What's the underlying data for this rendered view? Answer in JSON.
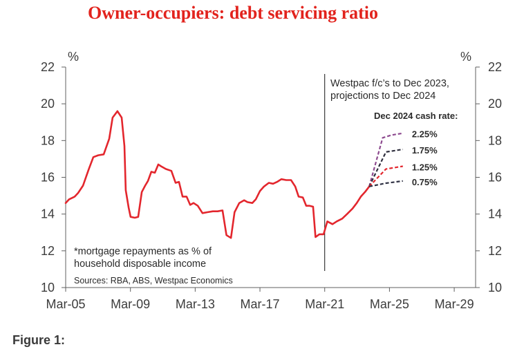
{
  "figure_label": "Figure 1:",
  "chart_data": {
    "type": "line",
    "title": "Owner-occupiers: debt servicing ratio",
    "y_unit_left": "%",
    "y_unit_right": "%",
    "ylim": [
      10,
      22
    ],
    "yticks": [
      22,
      20,
      18,
      16,
      14,
      12,
      10
    ],
    "xlim": [
      2005.17,
      2030.49
    ],
    "xticks": [
      {
        "label": "Mar-05",
        "x": 2005.17
      },
      {
        "label": "Mar-09",
        "x": 2009.17
      },
      {
        "label": "Mar-13",
        "x": 2013.17
      },
      {
        "label": "Mar-17",
        "x": 2017.17
      },
      {
        "label": "Mar-21",
        "x": 2021.17
      },
      {
        "label": "Mar-25",
        "x": 2025.17
      },
      {
        "label": "Mar-29",
        "x": 2029.17
      }
    ],
    "grid": false,
    "series": [
      {
        "color": "#e3262d",
        "dashed": false,
        "points": [
          [
            2005.17,
            14.6
          ],
          [
            2005.38,
            14.8
          ],
          [
            2005.73,
            14.95
          ],
          [
            2005.94,
            15.15
          ],
          [
            2006.24,
            15.55
          ],
          [
            2006.58,
            16.4
          ],
          [
            2006.88,
            17.1
          ],
          [
            2007.18,
            17.2
          ],
          [
            2007.52,
            17.25
          ],
          [
            2007.86,
            18.1
          ],
          [
            2008.07,
            19.25
          ],
          [
            2008.37,
            19.6
          ],
          [
            2008.63,
            19.25
          ],
          [
            2008.8,
            17.7
          ],
          [
            2008.88,
            15.3
          ],
          [
            2009.06,
            14.35
          ],
          [
            2009.18,
            13.85
          ],
          [
            2009.44,
            13.8
          ],
          [
            2009.65,
            13.85
          ],
          [
            2009.87,
            15.2
          ],
          [
            2010.08,
            15.55
          ],
          [
            2010.25,
            15.8
          ],
          [
            2010.46,
            16.3
          ],
          [
            2010.68,
            16.25
          ],
          [
            2010.89,
            16.7
          ],
          [
            2011.06,
            16.6
          ],
          [
            2011.36,
            16.45
          ],
          [
            2011.7,
            16.35
          ],
          [
            2011.96,
            15.7
          ],
          [
            2012.17,
            15.75
          ],
          [
            2012.39,
            14.95
          ],
          [
            2012.64,
            14.95
          ],
          [
            2012.86,
            14.5
          ],
          [
            2013.07,
            14.6
          ],
          [
            2013.33,
            14.45
          ],
          [
            2013.62,
            14.05
          ],
          [
            2013.92,
            14.1
          ],
          [
            2014.26,
            14.15
          ],
          [
            2014.56,
            14.15
          ],
          [
            2014.86,
            14.2
          ],
          [
            2015.1,
            12.85
          ],
          [
            2015.38,
            12.7
          ],
          [
            2015.6,
            14.1
          ],
          [
            2015.89,
            14.6
          ],
          [
            2016.19,
            14.75
          ],
          [
            2016.4,
            14.65
          ],
          [
            2016.7,
            14.6
          ],
          [
            2016.91,
            14.8
          ],
          [
            2017.17,
            15.25
          ],
          [
            2017.42,
            15.5
          ],
          [
            2017.72,
            15.7
          ],
          [
            2017.98,
            15.65
          ],
          [
            2018.23,
            15.75
          ],
          [
            2018.49,
            15.9
          ],
          [
            2018.79,
            15.85
          ],
          [
            2019.09,
            15.85
          ],
          [
            2019.35,
            15.5
          ],
          [
            2019.56,
            14.95
          ],
          [
            2019.82,
            14.9
          ],
          [
            2020.03,
            14.45
          ],
          [
            2020.24,
            14.45
          ],
          [
            2020.45,
            14.4
          ],
          [
            2020.6,
            12.75
          ],
          [
            2020.84,
            12.9
          ],
          [
            2021.1,
            12.9
          ],
          [
            2021.33,
            13.6
          ],
          [
            2021.65,
            13.45
          ],
          [
            2021.91,
            13.6
          ],
          [
            2022.25,
            13.75
          ],
          [
            2022.55,
            14.0
          ],
          [
            2022.89,
            14.3
          ],
          [
            2023.15,
            14.6
          ],
          [
            2023.4,
            14.95
          ],
          [
            2023.66,
            15.2
          ],
          [
            2023.92,
            15.5
          ]
        ]
      },
      {
        "name": "2.25%",
        "color": "#8d4a8f",
        "dashed": true,
        "points": [
          [
            2023.92,
            15.5
          ],
          [
            2024.75,
            18.15
          ],
          [
            2025.3,
            18.3
          ],
          [
            2026.0,
            18.4
          ]
        ]
      },
      {
        "name": "1.75%",
        "color": "#2e2e3d",
        "dashed": true,
        "points": [
          [
            2023.92,
            15.5
          ],
          [
            2024.95,
            17.38
          ],
          [
            2026.0,
            17.52
          ]
        ]
      },
      {
        "name": "1.25%",
        "color": "#e3262d",
        "dashed": true,
        "points": [
          [
            2023.92,
            15.5
          ],
          [
            2024.95,
            16.45
          ],
          [
            2026.0,
            16.6
          ]
        ]
      },
      {
        "name": "0.75%",
        "color": "#2e3042",
        "dashed": true,
        "points": [
          [
            2023.92,
            15.5
          ],
          [
            2024.95,
            15.68
          ],
          [
            2026.0,
            15.8
          ]
        ]
      }
    ],
    "annotations": {
      "divider_x": 2021.17,
      "forecast_note": [
        "Westpac f/c’s to Dec 2023,",
        "projections to Dec 2024"
      ],
      "legend_title": "Dec 2024 cash rate:",
      "footnote": [
        "*mortgage repayments as % of",
        "household disposable income"
      ],
      "sources": "Sources: RBA, ABS, Westpac Economics"
    }
  }
}
